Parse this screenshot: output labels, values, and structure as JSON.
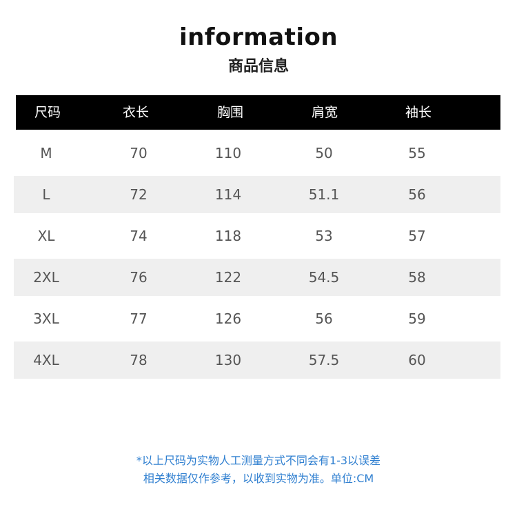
{
  "title": "information",
  "subtitle": "商品信息",
  "table": {
    "headers": [
      "尺码",
      "衣长",
      "胸围",
      "肩宽",
      "袖长"
    ],
    "rows": [
      [
        "M",
        "70",
        "110",
        "50",
        "55"
      ],
      [
        "L",
        "72",
        "114",
        "51.1",
        "56"
      ],
      [
        "XL",
        "74",
        "118",
        "53",
        "57"
      ],
      [
        "2XL",
        "76",
        "122",
        "54.5",
        "58"
      ],
      [
        "3XL",
        "77",
        "126",
        "56",
        "59"
      ],
      [
        "4XL",
        "78",
        "130",
        "57.5",
        "60"
      ]
    ]
  },
  "note": {
    "line1": "*以上尺码为实物人工测量方式不同会有1-3以误差",
    "line2": "相关数据仅作参考，以收到实物为准。单位:CM"
  },
  "colors": {
    "header_bg": "#000000",
    "alt_row_bg": "#efefef",
    "note": "#2f7fd0"
  }
}
